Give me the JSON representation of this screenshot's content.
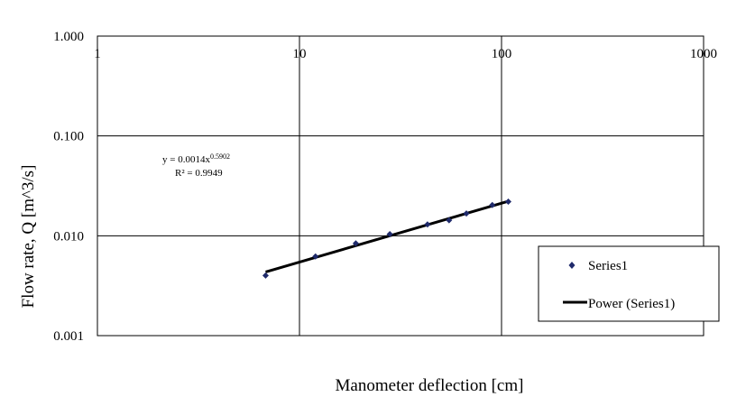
{
  "chart_data": {
    "type": "scatter",
    "x_scale": "log",
    "y_scale": "log",
    "xlim": [
      1,
      1000
    ],
    "ylim": [
      0.001,
      1
    ],
    "x_ticks": [
      1,
      10,
      100,
      1000
    ],
    "x_tick_labels": [
      "1",
      "10",
      "100",
      "1000"
    ],
    "y_ticks": [
      1,
      0.1,
      0.01,
      0.001
    ],
    "y_tick_labels": [
      "1.000",
      "0.100",
      "0.010",
      "0.001"
    ],
    "xlabel": "Manometer deflection [cm]",
    "ylabel": "Flow rate, Q [m^3/s]",
    "grid": true,
    "series": [
      {
        "name": "Series1",
        "marker": "diamond",
        "color": "#1f2a6b",
        "points": [
          [
            6.8,
            0.004
          ],
          [
            12.0,
            0.0062
          ],
          [
            19.0,
            0.0084
          ],
          [
            28.0,
            0.0104
          ],
          [
            43.0,
            0.013
          ],
          [
            55.0,
            0.0143
          ],
          [
            67.0,
            0.0167
          ],
          [
            90.0,
            0.0203
          ],
          [
            108.0,
            0.022
          ]
        ]
      }
    ],
    "trendline": {
      "name": "Power (Series1)",
      "type": "power",
      "coefficient": 0.0014,
      "exponent": 0.5902,
      "x_range": [
        6.8,
        108
      ],
      "color": "#000000",
      "equation_prefix": "y = 0.0014x",
      "equation_exponent": "0.5902",
      "r_squared_text": "R² = 0.9949"
    },
    "legend": {
      "placement": "right",
      "entries": [
        "Series1",
        "Power (Series1)"
      ]
    }
  }
}
